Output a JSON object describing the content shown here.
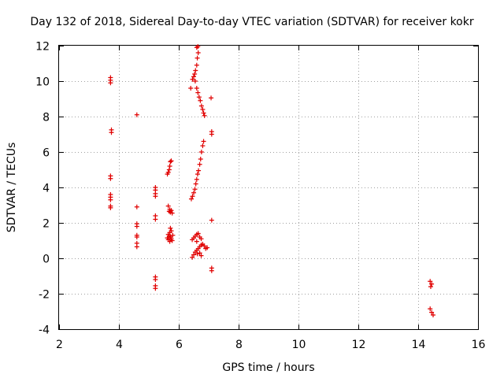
{
  "chart_data": {
    "type": "scatter",
    "title": "Day 132 of 2018, Sidereal Day-to-day VTEC variation (SDTVAR) for receiver kokr",
    "xlabel": "GPS time / hours",
    "ylabel": "SDTVAR / TECUs",
    "xlim": [
      2,
      16
    ],
    "ylim": [
      -4,
      12
    ],
    "xticks": [
      "2",
      "4",
      "6",
      "8",
      "10",
      "12",
      "14",
      "16"
    ],
    "yticks": [
      "-4",
      "-2",
      "0",
      "2",
      "4",
      "6",
      "8",
      "10",
      "12"
    ],
    "grid": true,
    "marker": "+",
    "color": "#e00000",
    "series": [
      {
        "name": "SDTVAR",
        "points": [
          [
            3.72,
            10.2
          ],
          [
            3.72,
            10.05
          ],
          [
            3.72,
            9.9
          ],
          [
            3.75,
            7.25
          ],
          [
            3.75,
            7.1
          ],
          [
            3.72,
            4.65
          ],
          [
            3.72,
            4.5
          ],
          [
            3.72,
            3.6
          ],
          [
            3.72,
            3.45
          ],
          [
            3.72,
            3.3
          ],
          [
            3.72,
            2.95
          ],
          [
            3.72,
            2.85
          ],
          [
            4.6,
            8.1
          ],
          [
            4.6,
            2.9
          ],
          [
            4.6,
            1.95
          ],
          [
            4.6,
            1.8
          ],
          [
            4.6,
            1.3
          ],
          [
            4.6,
            1.2
          ],
          [
            4.6,
            0.85
          ],
          [
            4.6,
            0.65
          ],
          [
            5.22,
            4.0
          ],
          [
            5.22,
            3.85
          ],
          [
            5.22,
            3.65
          ],
          [
            5.22,
            3.5
          ],
          [
            5.22,
            2.4
          ],
          [
            5.22,
            2.2
          ],
          [
            5.22,
            -1.05
          ],
          [
            5.22,
            -1.2
          ],
          [
            5.22,
            -1.55
          ],
          [
            5.22,
            -1.7
          ],
          [
            5.62,
            4.75
          ],
          [
            5.65,
            4.85
          ],
          [
            5.68,
            5.0
          ],
          [
            5.7,
            5.2
          ],
          [
            5.72,
            5.45
          ],
          [
            5.75,
            5.5
          ],
          [
            5.65,
            2.95
          ],
          [
            5.7,
            2.75
          ],
          [
            5.72,
            2.6
          ],
          [
            5.75,
            2.7
          ],
          [
            5.78,
            2.55
          ],
          [
            5.68,
            2.65
          ],
          [
            5.72,
            1.7
          ],
          [
            5.75,
            1.55
          ],
          [
            5.7,
            1.45
          ],
          [
            5.65,
            1.35
          ],
          [
            5.68,
            1.25
          ],
          [
            5.72,
            1.2
          ],
          [
            5.75,
            1.1
          ],
          [
            5.78,
            1.0
          ],
          [
            5.7,
            0.95
          ],
          [
            5.65,
            1.05
          ],
          [
            5.62,
            1.15
          ],
          [
            5.8,
            1.3
          ],
          [
            6.42,
            3.35
          ],
          [
            6.46,
            3.5
          ],
          [
            6.5,
            3.7
          ],
          [
            6.54,
            3.9
          ],
          [
            6.57,
            4.2
          ],
          [
            6.6,
            4.45
          ],
          [
            6.63,
            4.75
          ],
          [
            6.66,
            4.95
          ],
          [
            6.7,
            5.3
          ],
          [
            6.73,
            5.6
          ],
          [
            6.76,
            6.0
          ],
          [
            6.8,
            6.35
          ],
          [
            6.83,
            6.6
          ],
          [
            6.4,
            9.6
          ],
          [
            6.46,
            10.1
          ],
          [
            6.5,
            10.25
          ],
          [
            6.53,
            10.4
          ],
          [
            6.56,
            10.6
          ],
          [
            6.6,
            10.9
          ],
          [
            6.62,
            11.3
          ],
          [
            6.65,
            11.6
          ],
          [
            6.6,
            11.9
          ],
          [
            6.64,
            11.95
          ],
          [
            6.55,
            10.0
          ],
          [
            6.6,
            9.6
          ],
          [
            6.64,
            9.35
          ],
          [
            6.68,
            9.1
          ],
          [
            6.72,
            8.9
          ],
          [
            6.76,
            8.6
          ],
          [
            6.8,
            8.4
          ],
          [
            6.83,
            8.2
          ],
          [
            6.86,
            8.05
          ],
          [
            6.45,
            1.05
          ],
          [
            6.5,
            1.15
          ],
          [
            6.55,
            1.25
          ],
          [
            6.6,
            1.35
          ],
          [
            6.65,
            1.4
          ],
          [
            6.7,
            1.2
          ],
          [
            6.75,
            1.1
          ],
          [
            6.6,
            0.95
          ],
          [
            6.45,
            0.05
          ],
          [
            6.5,
            0.2
          ],
          [
            6.55,
            0.35
          ],
          [
            6.6,
            0.45
          ],
          [
            6.65,
            0.55
          ],
          [
            6.7,
            0.65
          ],
          [
            6.75,
            0.75
          ],
          [
            6.8,
            0.8
          ],
          [
            6.85,
            0.7
          ],
          [
            6.9,
            0.55
          ],
          [
            6.95,
            0.6
          ],
          [
            6.7,
            0.3
          ],
          [
            6.75,
            0.15
          ],
          [
            6.62,
            0.25
          ],
          [
            7.08,
            9.05
          ],
          [
            7.1,
            7.15
          ],
          [
            7.1,
            7.0
          ],
          [
            7.1,
            2.15
          ],
          [
            7.1,
            -0.55
          ],
          [
            7.1,
            -0.7
          ],
          [
            14.4,
            -1.3
          ],
          [
            14.45,
            -1.45
          ],
          [
            14.42,
            -1.6
          ],
          [
            14.4,
            -2.85
          ],
          [
            14.45,
            -3.05
          ],
          [
            14.5,
            -3.2
          ]
        ]
      }
    ]
  }
}
